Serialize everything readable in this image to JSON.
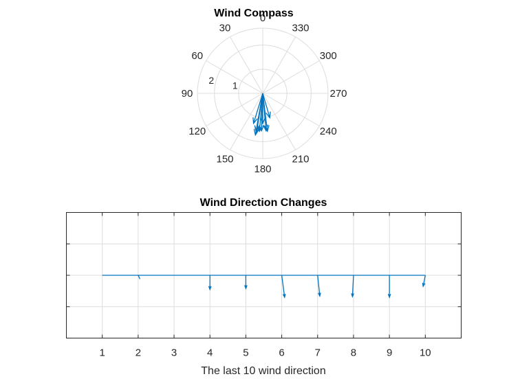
{
  "chart_data": [
    {
      "type": "compass",
      "title": "Wind Compass",
      "angle_ticks": [
        "0",
        "30",
        "60",
        "90",
        "120",
        "150",
        "180",
        "210",
        "240",
        "270",
        "300",
        "330"
      ],
      "angle_direction": "counterclockwise",
      "zero_location": "top",
      "radial_ticks": [
        "1",
        "2"
      ],
      "rlim": [
        0,
        2.7
      ],
      "grid": true,
      "vectors": [
        {
          "angle_deg": 171,
          "magnitude": 1.65
        },
        {
          "angle_deg": 175,
          "magnitude": 1.58
        },
        {
          "angle_deg": 180,
          "magnitude": 1.25
        },
        {
          "angle_deg": 178,
          "magnitude": 1.55
        },
        {
          "angle_deg": 170,
          "magnitude": 1.75
        },
        {
          "angle_deg": 163,
          "magnitude": 1.3
        },
        {
          "angle_deg": 185,
          "magnitude": 1.55
        },
        {
          "angle_deg": 170,
          "magnitude": 1.6
        },
        {
          "angle_deg": 187,
          "magnitude": 1.58
        },
        {
          "angle_deg": 196,
          "magnitude": 1.05
        }
      ]
    },
    {
      "type": "feather",
      "title": "Wind Direction Changes",
      "xlabel": "The last 10 wind direction",
      "x_ticks": [
        "1",
        "2",
        "3",
        "4",
        "5",
        "6",
        "7",
        "8",
        "9",
        "10"
      ],
      "xlim": [
        0,
        11
      ],
      "ylim": [
        -2,
        2
      ],
      "grid": true,
      "vectors": [
        {
          "x": 1,
          "u": 0.0,
          "v": 0.0
        },
        {
          "x": 2,
          "u": 0.05,
          "v": -0.12
        },
        {
          "x": 3,
          "u": 0.0,
          "v": 0.0
        },
        {
          "x": 4,
          "u": 0.0,
          "v": -0.45
        },
        {
          "x": 5,
          "u": 0.0,
          "v": -0.42
        },
        {
          "x": 6,
          "u": 0.08,
          "v": -0.7
        },
        {
          "x": 7,
          "u": 0.06,
          "v": -0.66
        },
        {
          "x": 8,
          "u": -0.03,
          "v": -0.68
        },
        {
          "x": 9,
          "u": 0.0,
          "v": -0.7
        },
        {
          "x": 10,
          "u": -0.06,
          "v": -0.35
        }
      ]
    }
  ]
}
